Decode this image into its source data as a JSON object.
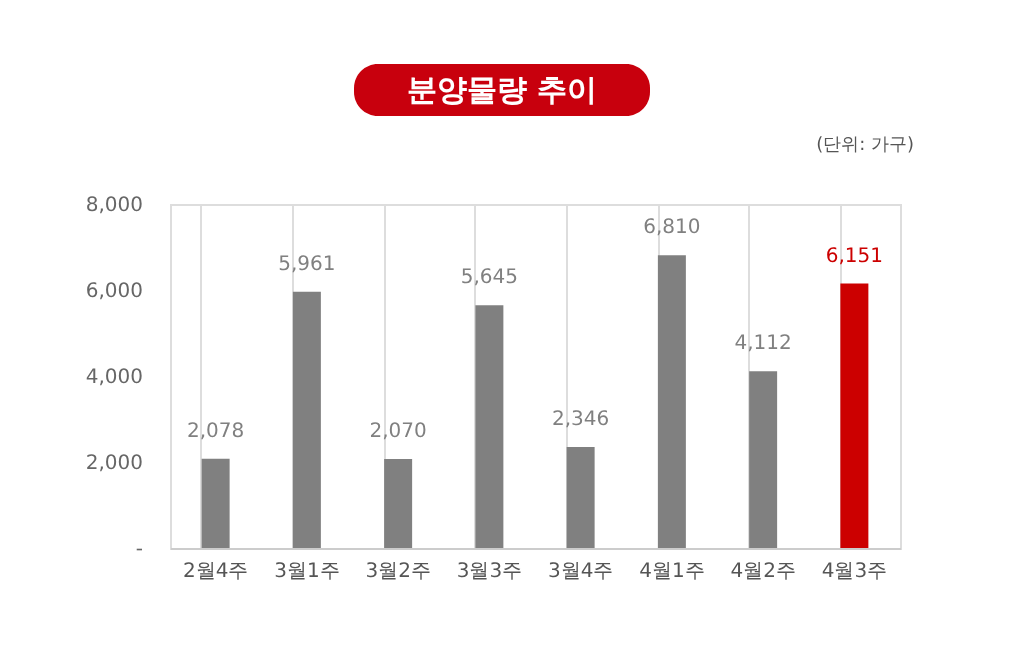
{
  "chart_data": {
    "type": "bar",
    "title": "분양물량 추이",
    "annotations": [
      "(단위: 가구)"
    ],
    "categories": [
      "2월4주",
      "3월1주",
      "3월2주",
      "3월3주",
      "3월4주",
      "4월1주",
      "4월2주",
      "4월3주"
    ],
    "values": [
      2078,
      5961,
      2070,
      5645,
      2346,
      6810,
      4112,
      6151
    ],
    "colors": [
      "#808080",
      "#808080",
      "#808080",
      "#808080",
      "#808080",
      "#808080",
      "#808080",
      "#cc0000"
    ],
    "value_labels": [
      "2,078",
      "5,961",
      "2,070",
      "5,645",
      "2,346",
      "6,810",
      "4,112",
      "6,151"
    ],
    "ylim": [
      0,
      8000
    ],
    "yticks": [
      {
        "value": 0,
        "label": "-"
      },
      {
        "value": 2000,
        "label": "2,000"
      },
      {
        "value": 4000,
        "label": "4,000"
      },
      {
        "value": 6000,
        "label": "6,000"
      },
      {
        "value": 8000,
        "label": "8,000"
      }
    ],
    "grid": "x"
  }
}
